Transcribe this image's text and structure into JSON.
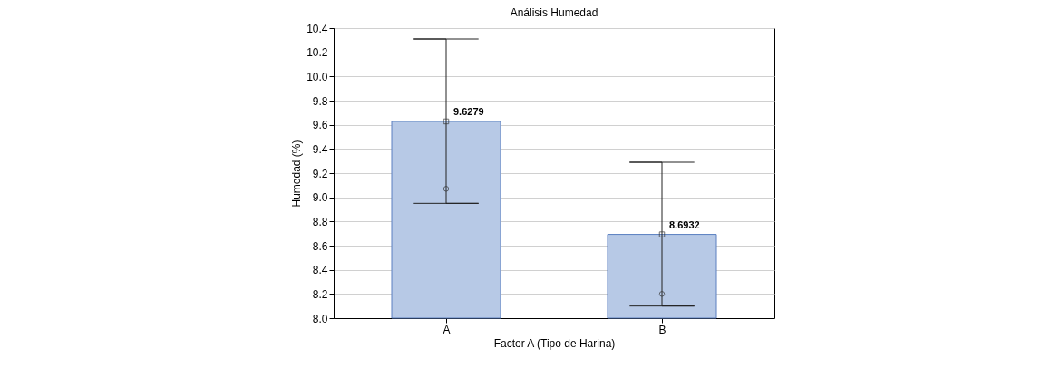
{
  "chart_data": {
    "type": "bar",
    "title": "Análisis Humedad",
    "xlabel": "Factor A (Tipo de Harina)",
    "ylabel": "Humedad (%)",
    "categories": [
      "A",
      "B"
    ],
    "series": [
      {
        "color": "#b7c9e6",
        "values": [
          9.6279,
          8.6932
        ],
        "value_labels": [
          "9.6279",
          "8.6932"
        ],
        "errors": [
          [
            8.95,
            10.31
          ],
          [
            8.1,
            9.29
          ]
        ]
      },
      {
        "type": "scatter",
        "color": "#333333",
        "marker": "square",
        "x": [
          "A",
          "B"
        ],
        "values": [
          9.6279,
          8.6932
        ]
      },
      {
        "type": "scatter",
        "color": "#333333",
        "marker": "circle",
        "x": [
          "A",
          "B"
        ],
        "values": [
          9.07,
          8.2
        ]
      }
    ],
    "ylim": [
      8.0,
      10.4
    ],
    "yticks": [
      {
        "value": 8,
        "label": "8.0"
      },
      8.2,
      8.4,
      8.6,
      8.8,
      {
        "value": 9,
        "label": "9.0"
      },
      9.2,
      9.4,
      9.6,
      9.8,
      {
        "value": 10,
        "label": "10.0"
      },
      10.2,
      10.4
    ],
    "grid": "y"
  }
}
